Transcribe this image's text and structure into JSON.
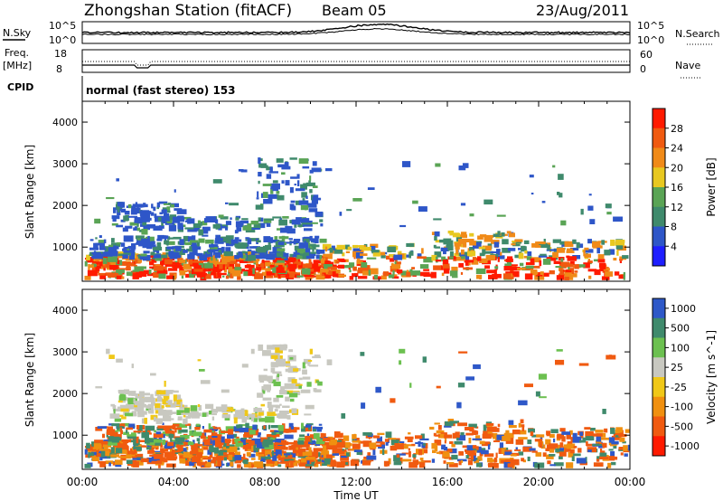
{
  "header": {
    "title": "Zhongshan Station (fitACF)",
    "beam": "Beam 05",
    "date": "23/Aug/2011"
  },
  "summary_panel": {
    "nsky_label": "N.Sky",
    "nsky_ticks": [
      "10^5",
      "10^0"
    ],
    "nsearch_label": "N.Search",
    "nsearch_ticks": [
      "10^5",
      "10^0"
    ],
    "freq_label": "Freq.",
    "freq_unit": "[MHz]",
    "freq_ticks": [
      "18",
      "8"
    ],
    "nave_label": "Nave",
    "nave_ticks": [
      "60",
      "0"
    ],
    "cpid_label": "CPID",
    "cpid_value": "normal (fast stereo) 153"
  },
  "chart_data": [
    {
      "type": "heatmap",
      "name": "power-panel",
      "ylabel": "Slant Range [km]",
      "xlabel": "",
      "ylim": [
        180,
        4500
      ],
      "y_ticks": [
        "1000",
        "2000",
        "3000",
        "4000"
      ],
      "colorbar": {
        "label": "Power [dB]",
        "ticks": [
          "4",
          "8",
          "12",
          "16",
          "20",
          "24",
          "28"
        ],
        "colors": [
          "#1e1eff",
          "#2e56c8",
          "#3f8a6c",
          "#5aa455",
          "#e8c820",
          "#f08a18",
          "#f05a10",
          "#ff1a00"
        ]
      }
    },
    {
      "type": "heatmap",
      "name": "velocity-panel",
      "ylabel": "Slant Range [km]",
      "xlabel": "Time UT",
      "ylim": [
        180,
        4500
      ],
      "y_ticks": [
        "1000",
        "2000",
        "3000",
        "4000"
      ],
      "x_ticks": [
        "00:00",
        "04:00",
        "08:00",
        "12:00",
        "16:00",
        "20:00",
        "00:00"
      ],
      "colorbar": {
        "label": "Velocity [m s^-1]",
        "ticks": [
          "1000",
          "500",
          "100",
          "25",
          "-25",
          "-100",
          "-500",
          "-1000"
        ],
        "colors": [
          "#2e58c8",
          "#3f8a6c",
          "#6cc050",
          "#c8c8c0",
          "#f0c818",
          "#f09010",
          "#f05a10",
          "#ff1a00"
        ]
      }
    }
  ]
}
